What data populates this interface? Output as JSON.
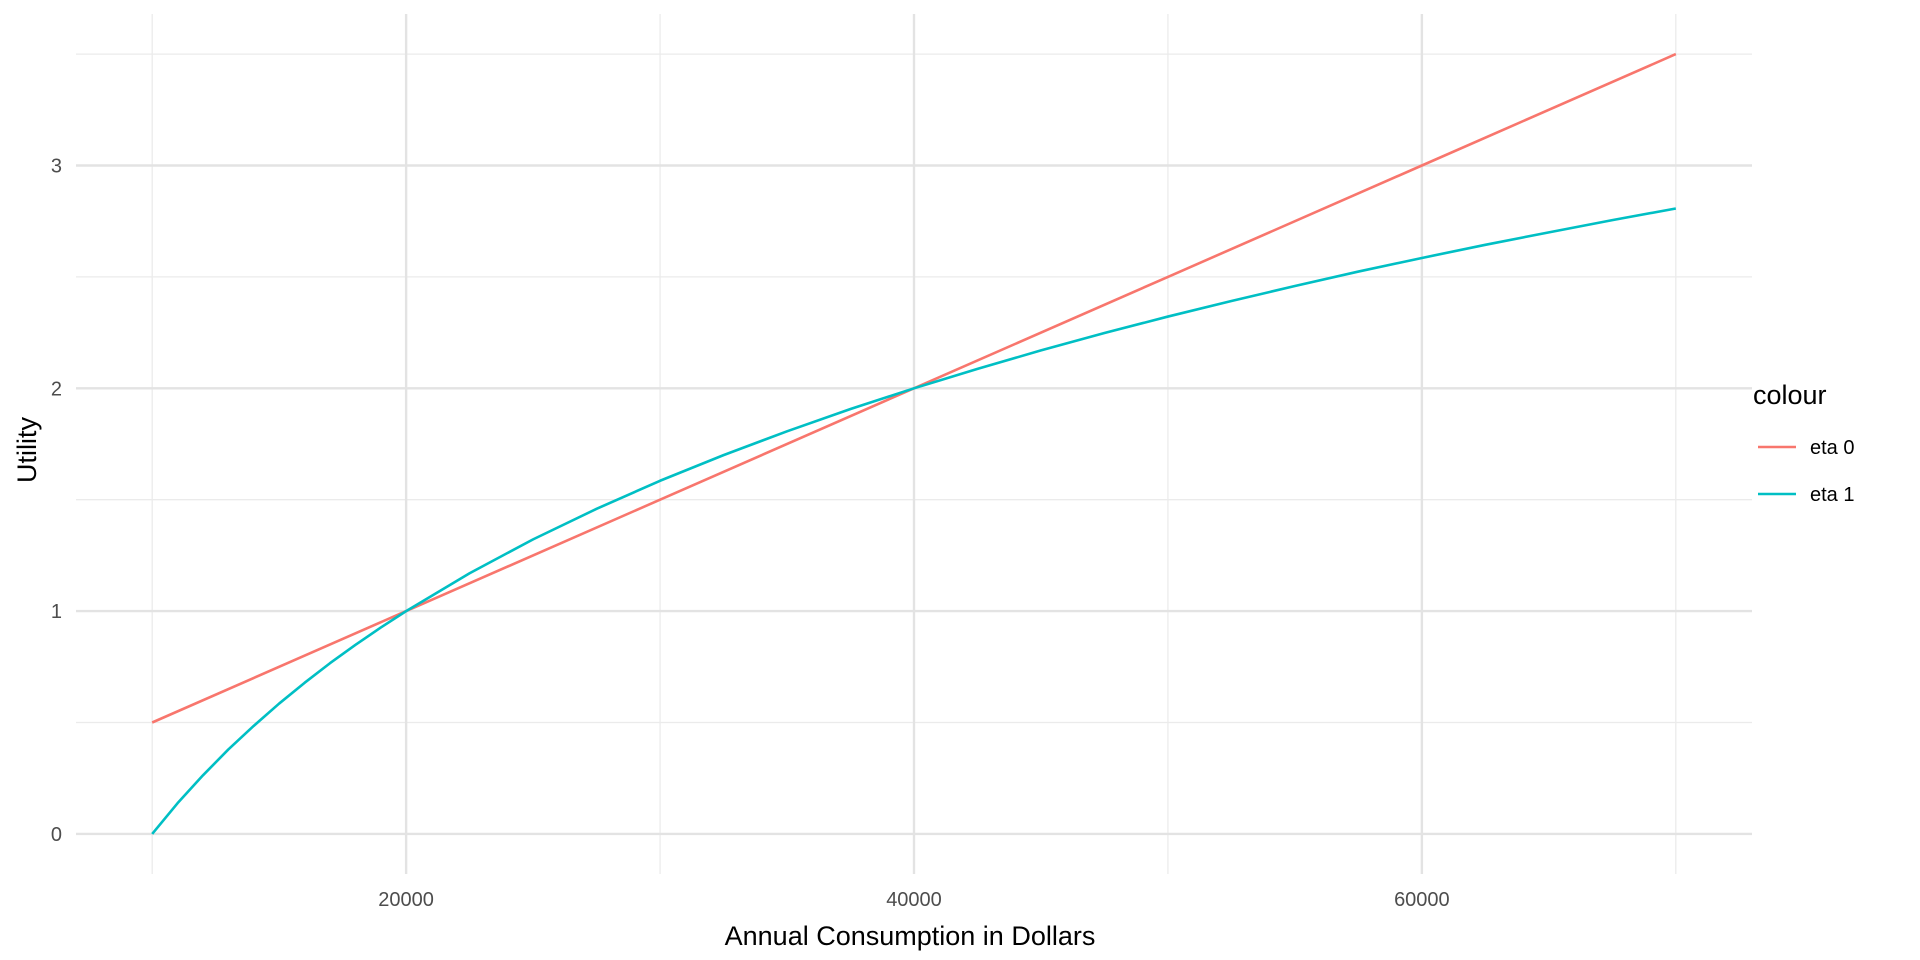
{
  "chart_data": {
    "type": "line",
    "xlabel": "Annual Consumption in Dollars",
    "ylabel": "Utility",
    "xlim": [
      7000,
      73000
    ],
    "ylim": [
      -0.18,
      3.68
    ],
    "x_ticks": [
      20000,
      40000,
      60000
    ],
    "x_minor_ticks": [
      10000,
      30000,
      50000,
      70000
    ],
    "y_ticks": [
      0,
      1,
      2,
      3
    ],
    "y_minor_ticks": [
      0.5,
      1.5,
      2.5,
      3.5
    ],
    "grid": true,
    "legend": {
      "title": "colour",
      "position": "right",
      "entries": [
        {
          "label": "eta 0",
          "color": "#F8766D"
        },
        {
          "label": "eta 1",
          "color": "#00BFC4"
        }
      ]
    },
    "series": [
      {
        "name": "eta 0",
        "color": "#F8766D",
        "x": [
          10000,
          20000,
          30000,
          40000,
          50000,
          60000,
          70000
        ],
        "y": [
          0.5,
          1.0,
          1.5,
          2.0,
          2.5,
          3.0,
          3.5
        ]
      },
      {
        "name": "eta 1",
        "color": "#00BFC4",
        "x": [
          10000,
          11000,
          12000,
          13000,
          14000,
          15000,
          16000,
          17000,
          18000,
          19000,
          20000,
          22500,
          25000,
          27500,
          30000,
          32500,
          35000,
          37500,
          40000,
          42500,
          45000,
          47500,
          50000,
          52500,
          55000,
          57500,
          60000,
          62500,
          65000,
          67500,
          70000
        ],
        "y": [
          0.0,
          0.138,
          0.263,
          0.379,
          0.485,
          0.585,
          0.678,
          0.766,
          0.848,
          0.926,
          1.0,
          1.17,
          1.322,
          1.459,
          1.585,
          1.7,
          1.807,
          1.907,
          2.0,
          2.087,
          2.17,
          2.248,
          2.322,
          2.392,
          2.459,
          2.524,
          2.585,
          2.644,
          2.7,
          2.755,
          2.807
        ]
      }
    ]
  }
}
